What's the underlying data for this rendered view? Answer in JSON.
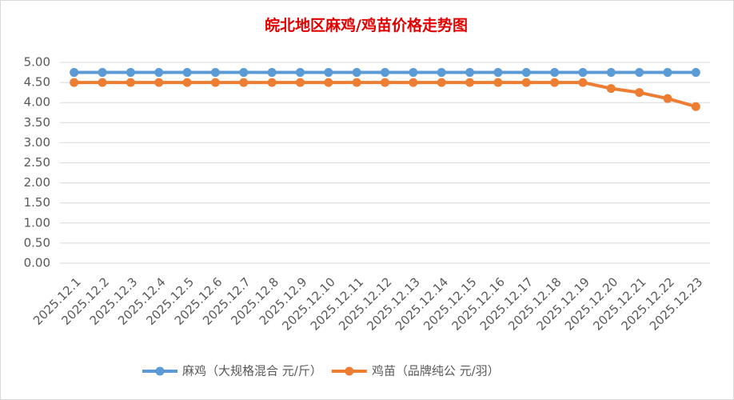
{
  "chart_data": {
    "type": "line",
    "title": "皖北地区麻鸡/鸡苗价格走势图",
    "categories": [
      "2025.12.1",
      "2025.12.2",
      "2025.12.3",
      "2025.12.4",
      "2025.12.5",
      "2025.12.6",
      "2025.12.7",
      "2025.12.8",
      "2025.12.9",
      "2025.12.10",
      "2025.12.11",
      "2025.12.12",
      "2025.12.13",
      "2025.12.14",
      "2025.12.15",
      "2025.12.16",
      "2025.12.17",
      "2025.12.18",
      "2025.12.19",
      "2025.12.20",
      "2025.12.21",
      "2025.12.22",
      "2025.12.23"
    ],
    "series": [
      {
        "name": "麻鸡（大规格混合 元/斤）",
        "color": "#5b9bd5",
        "values": [
          4.75,
          4.75,
          4.75,
          4.75,
          4.75,
          4.75,
          4.75,
          4.75,
          4.75,
          4.75,
          4.75,
          4.75,
          4.75,
          4.75,
          4.75,
          4.75,
          4.75,
          4.75,
          4.75,
          4.75,
          4.75,
          4.75,
          4.75
        ]
      },
      {
        "name": "鸡苗（品牌纯公 元/羽）",
        "color": "#ed7d31",
        "values": [
          4.5,
          4.5,
          4.5,
          4.5,
          4.5,
          4.5,
          4.5,
          4.5,
          4.5,
          4.5,
          4.5,
          4.5,
          4.5,
          4.5,
          4.5,
          4.5,
          4.5,
          4.5,
          4.5,
          4.35,
          4.25,
          4.1,
          3.9
        ]
      }
    ],
    "ylim": [
      0,
      5
    ],
    "yticks": [
      {
        "value": 0,
        "label": "0.00"
      },
      {
        "value": 0.5,
        "label": "0.50"
      },
      {
        "value": 1,
        "label": "1.00"
      },
      {
        "value": 1.5,
        "label": "1.50"
      },
      {
        "value": 2,
        "label": "2.00"
      },
      {
        "value": 2.5,
        "label": "2.50"
      },
      {
        "value": 3,
        "label": "3.00"
      },
      {
        "value": 3.5,
        "label": "3.50"
      },
      {
        "value": 4,
        "label": "4.00"
      },
      {
        "value": 4.5,
        "label": "4.50"
      },
      {
        "value": 5,
        "label": "5.00"
      }
    ],
    "grid": true,
    "legend": "bottom"
  }
}
